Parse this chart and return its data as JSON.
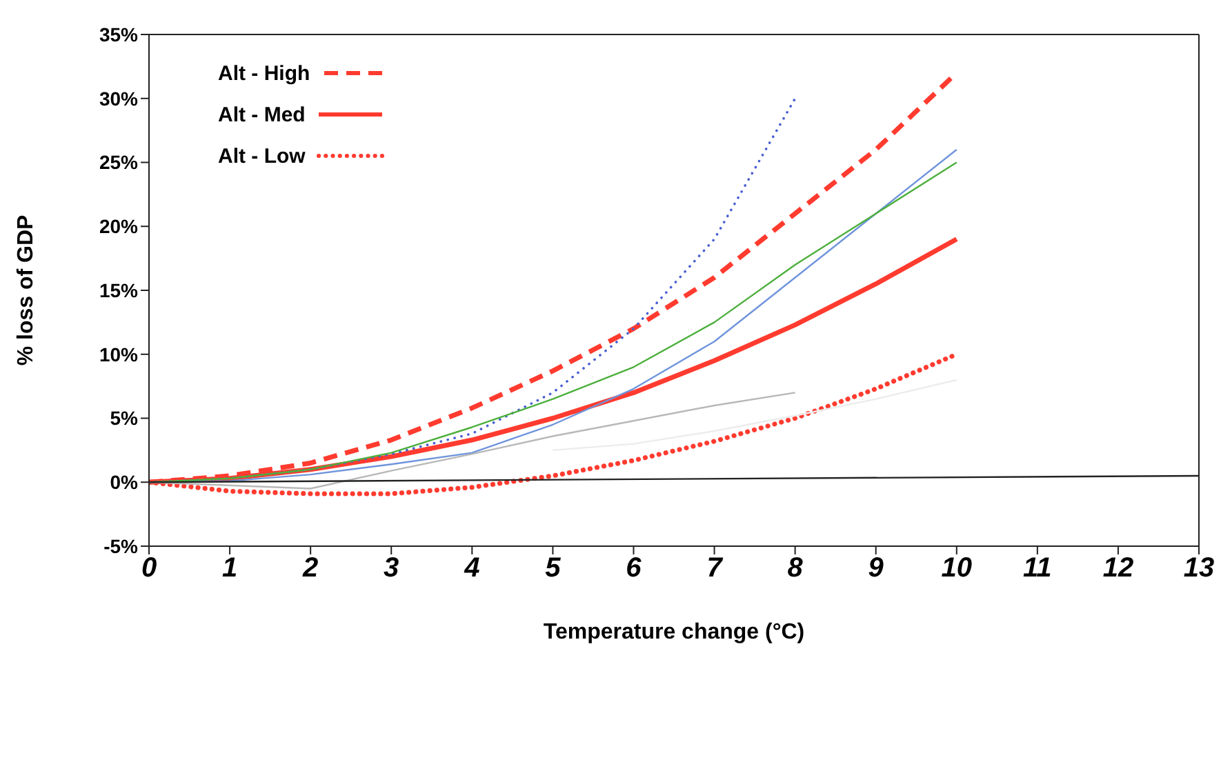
{
  "chart_data": {
    "type": "line",
    "xlabel": "Temperature change (°C)",
    "ylabel": "% loss of GDP",
    "xlim": [
      0,
      13
    ],
    "xticks": [
      0,
      1,
      2,
      3,
      4,
      5,
      6,
      7,
      8,
      9,
      10,
      11,
      12,
      13
    ],
    "ylim": [
      -5,
      35
    ],
    "yticks": [
      {
        "value": -5,
        "label": "-5%"
      },
      {
        "value": 0,
        "label": "0%"
      },
      {
        "value": 5,
        "label": "5%"
      },
      {
        "value": 10,
        "label": "10%"
      },
      {
        "value": 15,
        "label": "15%"
      },
      {
        "value": 20,
        "label": "20%"
      },
      {
        "value": 25,
        "label": "25%"
      },
      {
        "value": 30,
        "label": "30%"
      },
      {
        "value": 35,
        "label": "35%"
      }
    ],
    "grid": false,
    "legend": "top left",
    "marker": "none",
    "series": [
      {
        "name": "Alt - High",
        "color": "#ff3b2f",
        "line_style": "dashed",
        "x": [
          0,
          1,
          2,
          3,
          4,
          5,
          6,
          7,
          8,
          9,
          10
        ],
        "values": [
          0,
          0.5,
          1.5,
          3.3,
          5.8,
          8.7,
          12,
          16,
          21,
          26,
          32
        ]
      },
      {
        "name": "Alt - Med",
        "color": "#ff3b2f",
        "line_style": "solid",
        "x": [
          0,
          1,
          2,
          3,
          4,
          5,
          6,
          7,
          8,
          9,
          10
        ],
        "values": [
          0,
          0.3,
          1,
          2,
          3.3,
          5,
          7,
          9.5,
          12.3,
          15.5,
          19
        ]
      },
      {
        "name": "Alt - Low",
        "color": "#ff3b2f",
        "line_style": "dotted",
        "x": [
          0,
          1,
          2,
          3,
          4,
          5,
          6,
          7,
          8,
          9,
          10
        ],
        "values": [
          0,
          -0.7,
          -0.9,
          -0.9,
          -0.4,
          0.5,
          1.7,
          3.2,
          5,
          7.3,
          10
        ]
      },
      {
        "color": "#4a5fd0",
        "line_style": "dotted",
        "x": [
          0,
          1,
          2,
          3,
          4,
          5,
          6,
          7,
          8
        ],
        "values": [
          0,
          0.3,
          1,
          2.2,
          3.8,
          7,
          12,
          19,
          30
        ]
      },
      {
        "color": "#6f94dc",
        "line_style": "solid",
        "x": [
          0,
          1,
          2,
          3,
          4,
          5,
          6,
          7,
          8,
          9,
          10
        ],
        "values": [
          0,
          0.1,
          0.6,
          1.4,
          2.3,
          4.5,
          7.3,
          11,
          16,
          21,
          26
        ]
      },
      {
        "color": "#4caf3c",
        "line_style": "solid",
        "x": [
          0,
          1,
          2,
          3,
          4,
          5,
          6,
          7,
          8,
          9,
          10
        ],
        "values": [
          0,
          0.3,
          1,
          2.3,
          4.3,
          6.5,
          9,
          12.5,
          17,
          21,
          25
        ]
      },
      {
        "color": "#b8b8b8",
        "line_style": "solid",
        "x": [
          0,
          2,
          3,
          4,
          5,
          6,
          7,
          8
        ],
        "values": [
          0,
          -0.5,
          0.9,
          2.2,
          3.6,
          4.8,
          6,
          7
        ]
      },
      {
        "color": "#ececec",
        "line_style": "solid",
        "x": [
          5,
          6,
          7,
          8,
          9,
          10
        ],
        "values": [
          2.5,
          3,
          4,
          5.2,
          6.5,
          8
        ]
      },
      {
        "color": "#222222",
        "line_style": "solid",
        "x": [
          0,
          13
        ],
        "values": [
          0,
          0.5
        ]
      }
    ]
  }
}
